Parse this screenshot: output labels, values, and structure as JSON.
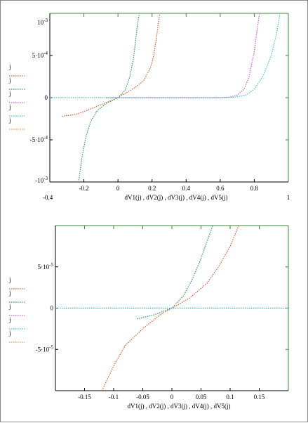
{
  "chart_data": [
    {
      "type": "line",
      "xlabel": "dV1(j) , dV2(j) , dV3(j) , dV4(j) , dV5(j)",
      "ylabel": "",
      "xlim": [
        -0.4,
        1
      ],
      "ylim": [
        -0.001,
        0.001
      ],
      "x_min_label": "-0.4",
      "x_max_label": "1",
      "y_max_label": "10^-3",
      "y_min_label": "-10^-3",
      "x_ticks": [
        {
          "value": -0.2,
          "label": "-0.2"
        },
        {
          "value": 0,
          "label": "0"
        },
        {
          "value": 0.2,
          "label": "0.2"
        },
        {
          "value": 0.4,
          "label": "0.4"
        },
        {
          "value": 0.6,
          "label": "0.6"
        },
        {
          "value": 0.8,
          "label": "0.8"
        }
      ],
      "y_ticks": [
        {
          "value": 0.0005,
          "label": "5·10^-4"
        },
        {
          "value": 0,
          "label": "0"
        },
        {
          "value": -0.0005,
          "label": "-5·10^-4"
        }
      ],
      "legend": [
        "j",
        "j",
        "j",
        "j",
        "j"
      ],
      "series": [
        {
          "color": "#e05a3a",
          "points": [
            [
              -0.33,
              -0.00022
            ],
            [
              -0.25,
              -0.0002
            ],
            [
              -0.18,
              -0.00015
            ],
            [
              -0.12,
              -0.0001
            ],
            [
              -0.06,
              -5e-05
            ],
            [
              0,
              0
            ],
            [
              0.05,
              6e-05
            ],
            [
              0.1,
              0.00012
            ],
            [
              0.15,
              0.0002
            ],
            [
              0.19,
              0.00035
            ],
            [
              0.21,
              0.0005
            ],
            [
              0.225,
              0.0007
            ],
            [
              0.235,
              0.00085
            ],
            [
              0.245,
              0.00099
            ]
          ]
        },
        {
          "color": "#2e9a4a",
          "points": [
            [
              -0.23,
              -0.00098
            ],
            [
              -0.21,
              -0.0007
            ],
            [
              -0.19,
              -0.00048
            ],
            [
              -0.16,
              -0.00028
            ],
            [
              -0.12,
              -0.00015
            ],
            [
              -0.07,
              -7e-05
            ],
            [
              0,
              0
            ],
            [
              0.04,
              8e-05
            ],
            [
              0.07,
              0.00025
            ],
            [
              0.09,
              0.00045
            ],
            [
              0.105,
              0.0007
            ],
            [
              0.115,
              0.00088
            ],
            [
              0.125,
              0.00099
            ]
          ]
        },
        {
          "color": "#d05acd",
          "points": [
            [
              -0.07,
              0
            ],
            [
              0.3,
              0
            ],
            [
              0.6,
              0
            ],
            [
              0.65,
              5e-06
            ],
            [
              0.7,
              3e-05
            ],
            [
              0.74,
              0.0001
            ],
            [
              0.77,
              0.00025
            ],
            [
              0.8,
              0.00055
            ],
            [
              0.815,
              0.00078
            ],
            [
              0.83,
              0.00099
            ]
          ]
        },
        {
          "color": "#3ec6c4",
          "points": [
            [
              -0.4,
              0
            ],
            [
              0.2,
              0
            ],
            [
              0.6,
              0
            ],
            [
              0.68,
              5e-06
            ],
            [
              0.75,
              3e-05
            ],
            [
              0.8,
              0.0001
            ],
            [
              0.85,
              0.00025
            ],
            [
              0.9,
              0.0005
            ],
            [
              0.93,
              0.00075
            ],
            [
              0.95,
              0.00099
            ]
          ]
        },
        {
          "color": "#e69a3a",
          "points": []
        }
      ]
    },
    {
      "type": "line",
      "xlabel": "dV1(j) , dV2(j) , dV3(j) , dV4(j) , dV5(j)",
      "ylabel": "",
      "xlim": [
        -0.2,
        0.2
      ],
      "ylim": [
        -0.0001,
        0.0001
      ],
      "x_ticks": [
        {
          "value": -0.15,
          "label": "-0.15"
        },
        {
          "value": -0.1,
          "label": "-0.1"
        },
        {
          "value": -0.05,
          "label": "-0.05"
        },
        {
          "value": 0,
          "label": "0"
        },
        {
          "value": 0.05,
          "label": "0.05"
        },
        {
          "value": 0.1,
          "label": "0.1"
        },
        {
          "value": 0.15,
          "label": "0.15"
        }
      ],
      "y_ticks": [
        {
          "value": 5e-05,
          "label": "5·10^-5"
        },
        {
          "value": 0,
          "label": "0"
        },
        {
          "value": -5e-05,
          "label": "-5·10^-5"
        }
      ],
      "legend": [
        "j",
        "j",
        "j",
        "j",
        "j"
      ],
      "series": [
        {
          "color": "#e05a3a",
          "points": [
            [
              -0.12,
              -0.0001
            ],
            [
              -0.1,
              -7e-05
            ],
            [
              -0.08,
              -4.5e-05
            ],
            [
              -0.05,
              -2.5e-05
            ],
            [
              -0.02,
              -8e-06
            ],
            [
              0,
              0
            ],
            [
              0.03,
              1.2e-05
            ],
            [
              0.06,
              3e-05
            ],
            [
              0.08,
              5e-05
            ],
            [
              0.1,
              7.5e-05
            ],
            [
              0.115,
              0.0001
            ]
          ]
        },
        {
          "color": "#2e9a4a",
          "points": [
            [
              -0.06,
              -1.3e-05
            ],
            [
              -0.03,
              -8e-06
            ],
            [
              0,
              0
            ],
            [
              0.02,
              1.5e-05
            ],
            [
              0.035,
              3.5e-05
            ],
            [
              0.05,
              6e-05
            ],
            [
              0.06,
              8e-05
            ],
            [
              0.07,
              0.0001
            ]
          ]
        },
        {
          "color": "#d05acd",
          "points": [
            [
              -0.2,
              0
            ],
            [
              0,
              0
            ],
            [
              0.2,
              0
            ]
          ]
        },
        {
          "color": "#3ec6c4",
          "points": [
            [
              -0.2,
              0
            ],
            [
              0,
              0
            ],
            [
              0.2,
              0
            ]
          ]
        },
        {
          "color": "#e69a3a",
          "points": []
        }
      ]
    }
  ]
}
